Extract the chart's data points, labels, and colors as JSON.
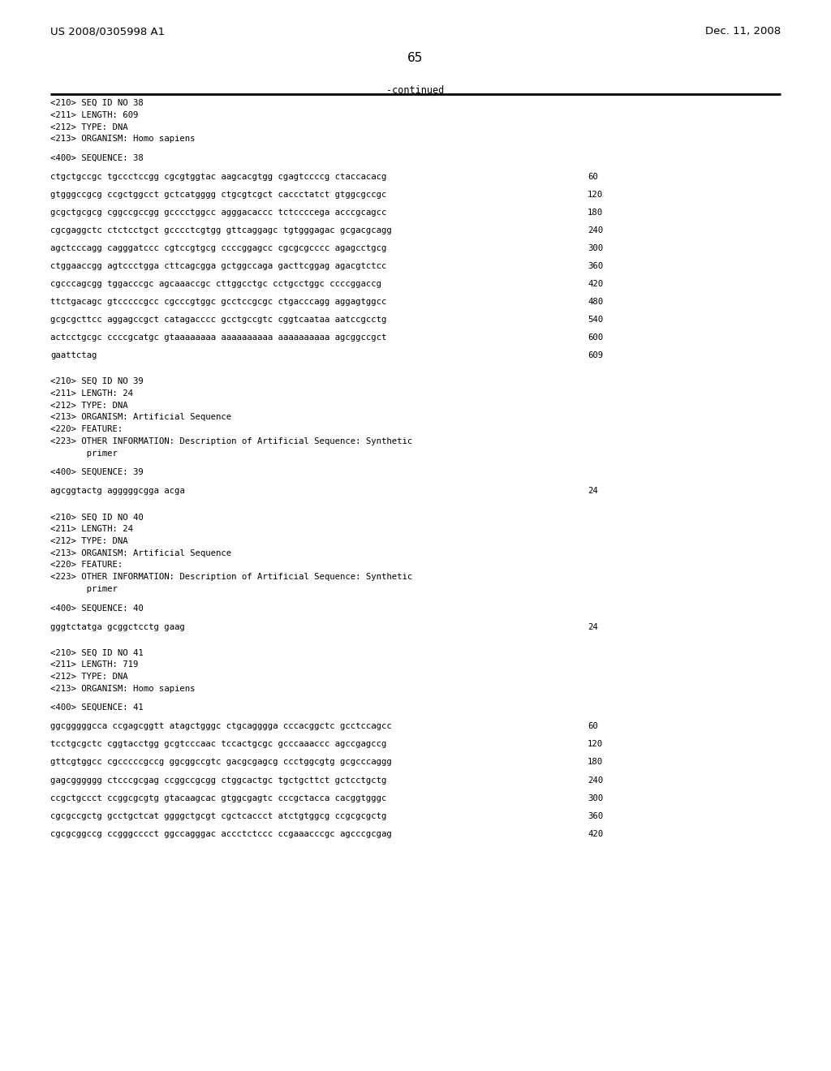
{
  "header_left": "US 2008/0305998 A1",
  "header_right": "Dec. 11, 2008",
  "page_number": "65",
  "continued_label": "-continued",
  "bg": "#ffffff",
  "fg": "#000000",
  "lm": 62,
  "rm": 962,
  "snx": 724,
  "lh": 14.8,
  "bh": 8.5,
  "fs": 7.7,
  "header_fs": 9.5,
  "pagenum_fs": 11.0,
  "cont_fs": 8.5,
  "sections": [
    {
      "header": [
        "<210> SEQ ID NO 38",
        "<211> LENGTH: 609",
        "<212> TYPE: DNA",
        "<213> ORGANISM: Homo sapiens"
      ],
      "seq_label": "<400> SEQUENCE: 38",
      "sequences": [
        {
          "text": "ctgctgccgc tgccctccgg cgcgtggtac aagcacgtgg cgagtccccg ctaccacacg",
          "num": "60"
        },
        {
          "text": "gtgggccgcg ccgctggcct gctcatgggg ctgcgtcgct caccctatct gtggcgccgc",
          "num": "120"
        },
        {
          "text": "gcgctgcgcg cggccgccgg gcccctggcc agggacaccc tctccccega acccgcagcc",
          "num": "180"
        },
        {
          "text": "cgcgaggctc ctctcctgct gcccctcgtgg gttcaggagc tgtgggagac gcgacgcagg",
          "num": "240"
        },
        {
          "text": "agctcccagg cagggatccc cgtccgtgcg ccccggagcc cgcgcgcccc agagcctgcg",
          "num": "300"
        },
        {
          "text": "ctggaaccgg agtccctgga cttcagcgga gctggccaga gacttcggag agacgtctcc",
          "num": "360"
        },
        {
          "text": "cgcccagcgg tggacccgc agcaaaccgc cttggcctgc cctgcctggc ccccggaccg",
          "num": "420"
        },
        {
          "text": "ttctgacagc gtcccccgcc cgcccgtggc gcctccgcgc ctgacccagg aggagtggcc",
          "num": "480"
        },
        {
          "text": "gcgcgcttcc aggagccgct catagacccc gcctgccgtc cggtcaataa aatccgcctg",
          "num": "540"
        },
        {
          "text": "actcctgcgc ccccgcatgc gtaaaaaaaa aaaaaaaaaa aaaaaaaaaa agcggccgct",
          "num": "600"
        },
        {
          "text": "gaattctag",
          "num": "609"
        }
      ]
    },
    {
      "header": [
        "<210> SEQ ID NO 39",
        "<211> LENGTH: 24",
        "<212> TYPE: DNA",
        "<213> ORGANISM: Artificial Sequence",
        "<220> FEATURE:",
        "<223> OTHER INFORMATION: Description of Artificial Sequence: Synthetic",
        "       primer"
      ],
      "seq_label": "<400> SEQUENCE: 39",
      "sequences": [
        {
          "text": "agcggtactg agggggcgga acga",
          "num": "24"
        }
      ]
    },
    {
      "header": [
        "<210> SEQ ID NO 40",
        "<211> LENGTH: 24",
        "<212> TYPE: DNA",
        "<213> ORGANISM: Artificial Sequence",
        "<220> FEATURE:",
        "<223> OTHER INFORMATION: Description of Artificial Sequence: Synthetic",
        "       primer"
      ],
      "seq_label": "<400> SEQUENCE: 40",
      "sequences": [
        {
          "text": "gggtctatga gcggctcctg gaag",
          "num": "24"
        }
      ]
    },
    {
      "header": [
        "<210> SEQ ID NO 41",
        "<211> LENGTH: 719",
        "<212> TYPE: DNA",
        "<213> ORGANISM: Homo sapiens"
      ],
      "seq_label": "<400> SEQUENCE: 41",
      "sequences": [
        {
          "text": "ggcgggggcca ccgagcggtt atagctgggc ctgcagggga cccacggctc gcctccagcc",
          "num": "60"
        },
        {
          "text": "tcctgcgctc cggtacctgg gcgtcccaac tccactgcgc gcccaaaccc agccgagccg",
          "num": "120"
        },
        {
          "text": "gttcgtggcc cgcccccgccg ggcggccgtc gacgcgagcg ccctggcgtg gcgcccaggg",
          "num": "180"
        },
        {
          "text": "gagcgggggg ctcccgcgag ccggccgcgg ctggcactgc tgctgcttct gctcctgctg",
          "num": "240"
        },
        {
          "text": "ccgctgccct ccggcgcgtg gtacaagcac gtggcgagtc cccgctacca cacggtgggc",
          "num": "300"
        },
        {
          "text": "cgcgccgctg gcctgctcat ggggctgcgt cgctcaccct atctgtggcg ccgcgcgctg",
          "num": "360"
        },
        {
          "text": "cgcgcggccg ccgggcccct ggccagggac accctctccc ccgaaacccgc agcccgcgag",
          "num": "420"
        }
      ]
    }
  ]
}
